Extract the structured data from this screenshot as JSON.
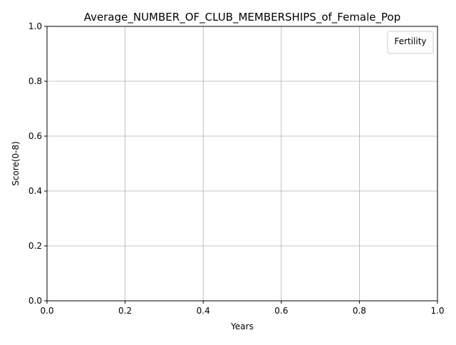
{
  "chart_data": {
    "type": "line",
    "title": "Average_NUMBER_OF_CLUB_MEMBERSHIPS_of_Female_Pop",
    "xlabel": "Years",
    "ylabel": "Score(0-8)",
    "xlim": [
      0.0,
      1.0
    ],
    "ylim": [
      0.0,
      1.0
    ],
    "xticks": [
      "0.0",
      "0.2",
      "0.4",
      "0.6",
      "0.8",
      "1.0"
    ],
    "yticks": [
      "0.0",
      "0.2",
      "0.4",
      "0.6",
      "0.8",
      "1.0"
    ],
    "grid": true,
    "legend": {
      "title": "Fertility",
      "position": "top-right",
      "entries": []
    },
    "series": []
  },
  "colors": {
    "grid": "#b0b0b0",
    "axes": "#000000",
    "legend_border": "#cccccc",
    "background": "#ffffff"
  }
}
